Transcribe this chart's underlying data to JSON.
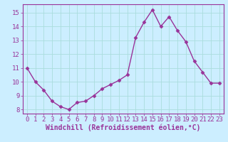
{
  "x": [
    0,
    1,
    2,
    3,
    4,
    5,
    6,
    7,
    8,
    9,
    10,
    11,
    12,
    13,
    14,
    15,
    16,
    17,
    18,
    19,
    20,
    21,
    22,
    23
  ],
  "y": [
    11.0,
    10.0,
    9.4,
    8.6,
    8.2,
    8.0,
    8.5,
    8.6,
    9.0,
    9.5,
    9.8,
    10.1,
    10.5,
    13.2,
    14.3,
    15.2,
    14.0,
    14.7,
    13.7,
    12.9,
    11.5,
    10.7,
    9.9,
    9.9
  ],
  "line_color": "#993399",
  "marker": "D",
  "marker_size": 2.5,
  "bg_color": "#cceeff",
  "grid_color": "#aadddd",
  "xlabel": "Windchill (Refroidissement éolien,°C)",
  "ylim": [
    7.7,
    15.6
  ],
  "xlim": [
    -0.5,
    23.5
  ],
  "yticks": [
    8,
    9,
    10,
    11,
    12,
    13,
    14,
    15
  ],
  "xticks": [
    0,
    1,
    2,
    3,
    4,
    5,
    6,
    7,
    8,
    9,
    10,
    11,
    12,
    13,
    14,
    15,
    16,
    17,
    18,
    19,
    20,
    21,
    22,
    23
  ],
  "tick_label_fontsize": 6.5,
  "xlabel_fontsize": 7.0,
  "line_width": 1.0
}
